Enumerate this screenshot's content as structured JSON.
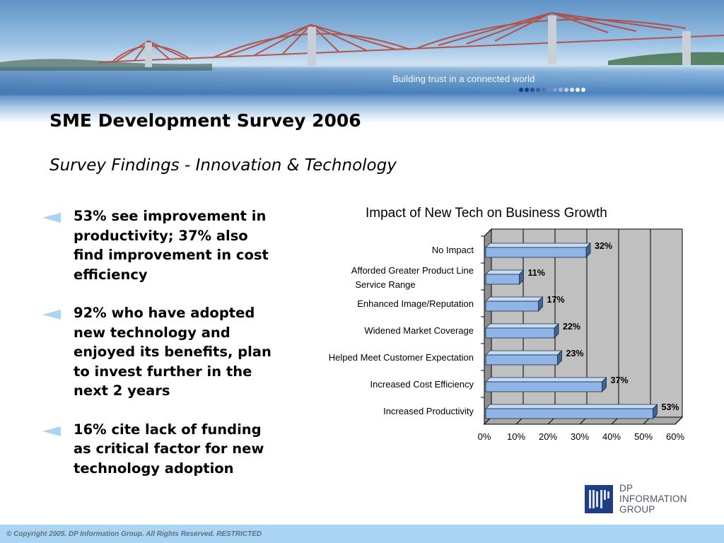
{
  "banner": {
    "tagline": "Building trust in a connected world",
    "image_icon": "bridge-icon",
    "dot_colors": [
      "#1a3a8a",
      "#1a3a8a",
      "#2a4c9a",
      "#3b5ea8",
      "#5673b5",
      "#7088c2",
      "#8a9ecf",
      "#a5b4dc",
      "#c2cde8",
      "#dde4f3",
      "#eef2fa",
      "#ffffff"
    ]
  },
  "title": "SME Development Survey 2006",
  "subtitle": "Survey Findings  -  Innovation & Technology",
  "bullets": [
    {
      "icon": "triangle-arrow-icon",
      "text": "53% see improvement in productivity; 37% also find improvement in cost efficiency"
    },
    {
      "icon": "triangle-arrow-icon",
      "text": "92% who have adopted new technology and enjoyed its benefits, plan to invest further in the next 2 years"
    },
    {
      "icon": "triangle-arrow-icon",
      "text": "16% cite lack of funding as critical factor for new technology adoption"
    }
  ],
  "chart_data": {
    "type": "bar",
    "orientation": "horizontal",
    "title": "Impact of New Tech on Business Growth",
    "categories": [
      "No Impact",
      "Afforded Greater Product Line Service Range",
      "Enhanced Image/Reputation",
      "Widened Market Coverage",
      "Helped Meet Customer Expectation",
      "Increased Cost Efficiency",
      "Increased Productivity"
    ],
    "values": [
      32,
      11,
      17,
      22,
      23,
      37,
      53
    ],
    "data_labels": [
      "32%",
      "11%",
      "17%",
      "22%",
      "23%",
      "37%",
      "53%"
    ],
    "xlim": [
      0,
      60
    ],
    "x_ticks": [
      "0%",
      "10%",
      "20%",
      "30%",
      "40%",
      "50%",
      "60%"
    ],
    "xlabel": "",
    "ylabel": "",
    "grid": true,
    "colors": {
      "bar": "#8fb5e6",
      "plot_background": "#c0c0c0"
    }
  },
  "logo": {
    "mark": "DP",
    "lines": [
      "DP",
      "INFORMATION",
      "GROUP"
    ],
    "color": "#1f3d85"
  },
  "footer": {
    "text": "© Copyright 2005. DP Information Group. All Rights Reserved. RESTRICTED",
    "color": "#a9d4f4"
  }
}
